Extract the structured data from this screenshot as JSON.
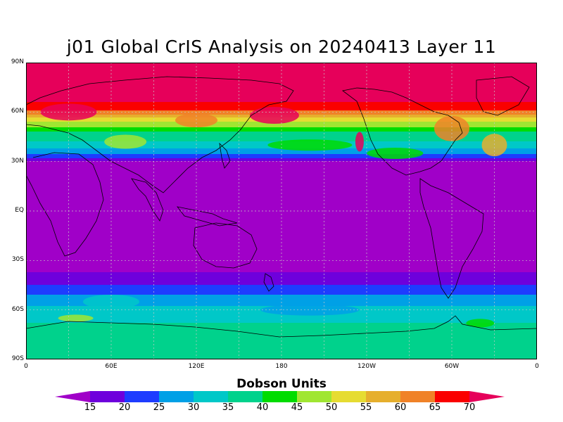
{
  "title": "j01 Global CrIS Analysis on 20240413 Layer 11",
  "map": {
    "projection": "cylindrical-equidistant",
    "lat_range": [
      -90,
      90
    ],
    "lon_range": [
      0,
      360
    ],
    "lat_labels": [
      "90N",
      "60N",
      "30N",
      "EQ",
      "30S",
      "60S",
      "90S"
    ],
    "lon_labels": [
      "0",
      "60E",
      "120E",
      "180",
      "120W",
      "60W",
      "0"
    ],
    "grid": "dotted every 30 degrees",
    "zonal_profile": [
      {
        "lat": 90,
        "value": 75
      },
      {
        "lat": 70,
        "value": 72
      },
      {
        "lat": 62,
        "value": 68
      },
      {
        "lat": 55,
        "value": 52
      },
      {
        "lat": 48,
        "value": 40
      },
      {
        "lat": 40,
        "value": 33
      },
      {
        "lat": 34,
        "value": 24
      },
      {
        "lat": 30,
        "value": 15
      },
      {
        "lat": 0,
        "value": 12
      },
      {
        "lat": -36,
        "value": 14
      },
      {
        "lat": -42,
        "value": 18
      },
      {
        "lat": -48,
        "value": 22
      },
      {
        "lat": -54,
        "value": 28
      },
      {
        "lat": -60,
        "value": 31
      },
      {
        "lat": -66,
        "value": 34
      },
      {
        "lat": -72,
        "value": 38
      },
      {
        "lat": -80,
        "value": 36
      },
      {
        "lat": -90,
        "value": 35
      }
    ]
  },
  "colorbar": {
    "title": "Dobson Units",
    "ticks": [
      "15",
      "20",
      "25",
      "30",
      "35",
      "40",
      "45",
      "50",
      "55",
      "60",
      "65",
      "70"
    ],
    "levels": [
      15,
      20,
      25,
      30,
      35,
      40,
      45,
      50,
      55,
      60,
      65,
      70
    ],
    "colors": [
      "#a000c8",
      "#6e00dc",
      "#1e3cff",
      "#00a0e6",
      "#00c8c8",
      "#00d28c",
      "#00dc00",
      "#a0e632",
      "#e6dc32",
      "#e6af2d",
      "#f08228",
      "#fa0000",
      "#e6005a"
    ]
  }
}
